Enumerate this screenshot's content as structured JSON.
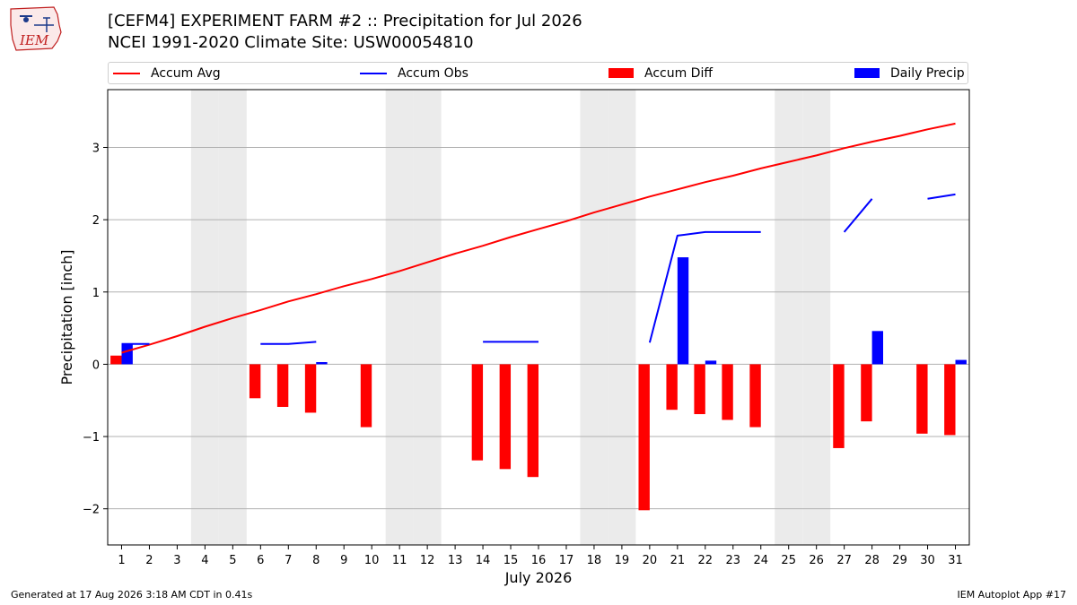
{
  "logo": {
    "text": "IEM"
  },
  "header": {
    "title_line1": "[CEFM4] EXPERIMENT FARM #2 :: Precipitation for Jul 2026",
    "title_line2": "NCEI 1991-2020 Climate Site: USW00054810"
  },
  "legend": {
    "accum_avg": "Accum Avg",
    "accum_obs": "Accum Obs",
    "accum_diff": "Accum Diff",
    "daily_precip": "Daily Precip"
  },
  "colors": {
    "avg": "#ff0000",
    "obs": "#0000ff",
    "diff": "#ff0000",
    "daily": "#0000ff",
    "weekend": "#ebebeb",
    "grid": "#b0b0b0"
  },
  "footer": {
    "generated": "Generated at 17 Aug 2026 3:18 AM CDT in 0.41s",
    "app": "IEM Autoplot App #17"
  },
  "chart_data": {
    "type": "bar",
    "xlabel": "July 2026",
    "ylabel": "Precipitation [inch]",
    "xlim": [
      0.5,
      31.5
    ],
    "ylim": [
      -2.5,
      3.8
    ],
    "yticks": [
      -2,
      -1,
      0,
      1,
      2,
      3
    ],
    "ytick_labels": [
      "−2",
      "−1",
      "0",
      "1",
      "2",
      "3"
    ],
    "x": [
      1,
      2,
      3,
      4,
      5,
      6,
      7,
      8,
      9,
      10,
      11,
      12,
      13,
      14,
      15,
      16,
      17,
      18,
      19,
      20,
      21,
      22,
      23,
      24,
      25,
      26,
      27,
      28,
      29,
      30,
      31
    ],
    "shaded_weekend_days": [
      4,
      5,
      11,
      12,
      18,
      19,
      25,
      26
    ],
    "grid": true,
    "legend_position": "top",
    "series": [
      {
        "name": "Accum Avg",
        "kind": "line",
        "values": [
          0.16,
          0.27,
          0.39,
          0.52,
          0.64,
          0.75,
          0.87,
          0.97,
          1.08,
          1.18,
          1.29,
          1.41,
          1.53,
          1.64,
          1.76,
          1.87,
          1.98,
          2.1,
          2.21,
          2.32,
          2.42,
          2.52,
          2.61,
          2.71,
          2.8,
          2.89,
          2.99,
          3.08,
          3.16,
          3.25,
          3.33
        ]
      },
      {
        "name": "Accum Obs",
        "kind": "line",
        "values": [
          0.28,
          0.28,
          null,
          null,
          null,
          0.28,
          0.28,
          0.31,
          null,
          null,
          null,
          null,
          null,
          0.31,
          0.31,
          0.31,
          null,
          null,
          null,
          0.3,
          1.78,
          1.83,
          1.83,
          1.83,
          null,
          null,
          1.83,
          2.29,
          null,
          2.29,
          2.35
        ]
      },
      {
        "name": "Accum Diff",
        "kind": "bar",
        "values": [
          0.12,
          null,
          null,
          null,
          null,
          -0.47,
          -0.59,
          -0.67,
          null,
          -0.87,
          null,
          null,
          null,
          -1.33,
          -1.45,
          -1.56,
          null,
          null,
          null,
          -2.02,
          -0.63,
          -0.69,
          -0.77,
          -0.87,
          null,
          null,
          -1.16,
          -0.79,
          null,
          -0.96,
          -0.98
        ]
      },
      {
        "name": "Daily Precip",
        "kind": "bar",
        "values": [
          0.28,
          null,
          null,
          null,
          null,
          null,
          null,
          0.03,
          null,
          null,
          null,
          null,
          null,
          null,
          null,
          null,
          null,
          null,
          null,
          null,
          1.48,
          0.05,
          null,
          null,
          null,
          null,
          null,
          0.46,
          null,
          null,
          0.06
        ]
      }
    ]
  }
}
